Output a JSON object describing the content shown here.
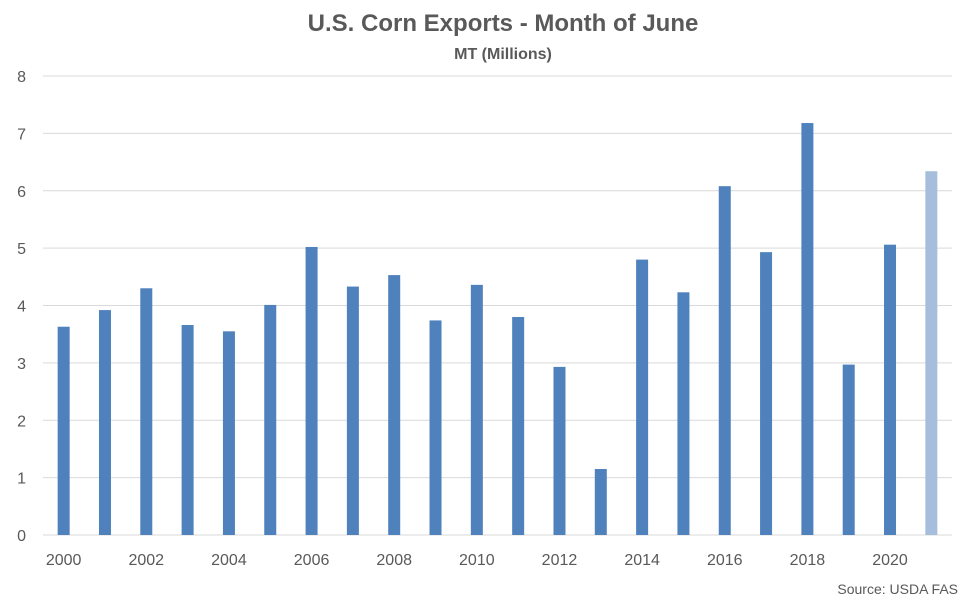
{
  "chart_data": {
    "type": "bar",
    "title": "U.S. Corn Exports - Month of June",
    "subtitle": "MT (Millions)",
    "source": "Source: USDA FAS",
    "categories": [
      "2000",
      "2001",
      "2002",
      "2003",
      "2004",
      "2005",
      "2006",
      "2007",
      "2008",
      "2009",
      "2010",
      "2011",
      "2012",
      "2013",
      "2014",
      "2015",
      "2016",
      "2017",
      "2018",
      "2019",
      "2020",
      "2021"
    ],
    "x_tick_labels": [
      "2000",
      "",
      "2002",
      "",
      "2004",
      "",
      "2006",
      "",
      "2008",
      "",
      "2010",
      "",
      "2012",
      "",
      "2014",
      "",
      "2016",
      "",
      "2018",
      "",
      "2020",
      ""
    ],
    "values": [
      3.63,
      3.92,
      4.3,
      3.66,
      3.55,
      4.01,
      5.02,
      4.33,
      4.53,
      3.74,
      4.36,
      3.8,
      2.93,
      1.15,
      4.8,
      4.23,
      6.08,
      4.93,
      7.18,
      2.97,
      5.06,
      6.34
    ],
    "highlight_last": true,
    "ylim": [
      0,
      8
    ],
    "yticks": [
      0,
      1,
      2,
      3,
      4,
      5,
      6,
      7,
      8
    ],
    "grid": true,
    "legend": "none",
    "colors": {
      "bar": "#4f81bd",
      "bar_highlight": "#a6bedc",
      "grid": "#d9d9d9",
      "text": "#595959"
    }
  }
}
